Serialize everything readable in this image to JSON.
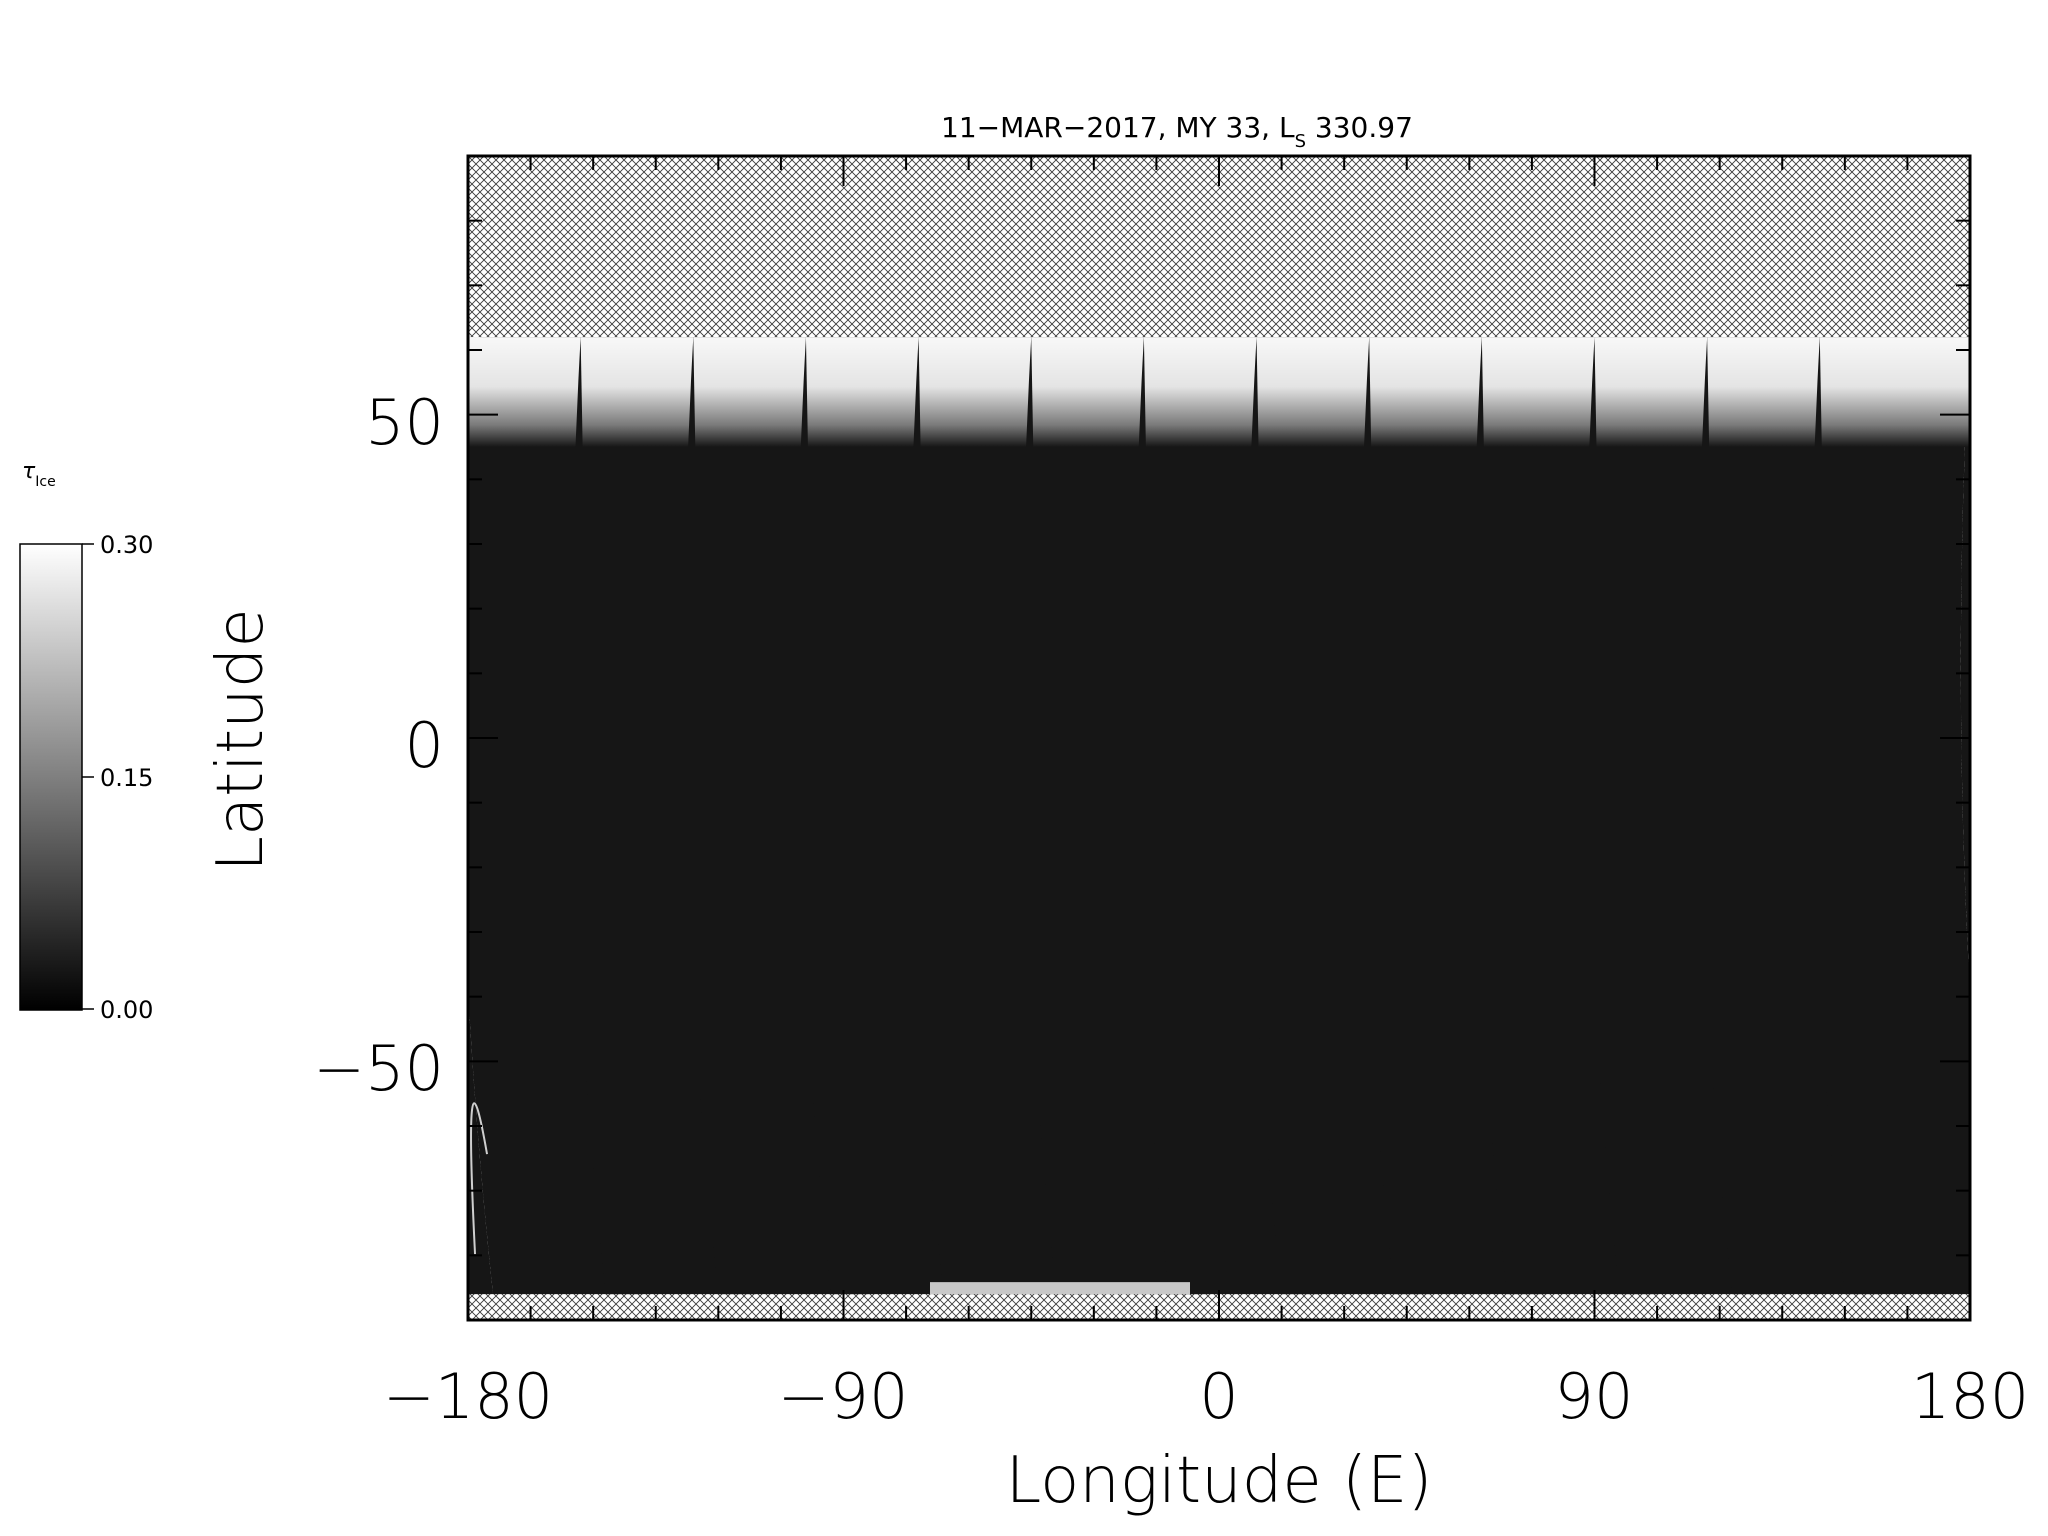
{
  "chart_data": {
    "type": "heatmap",
    "title": "11−MAR−2017, MY 33,  L",
    "title_subscript": "S",
    "title_value": " 330.97",
    "xlabel": "Longitude (E)",
    "ylabel": "Latitude",
    "xlim": [
      -180,
      180
    ],
    "ylim": [
      -90,
      90
    ],
    "x_ticks": [
      -180,
      -90,
      0,
      90,
      180
    ],
    "x_tick_labels": [
      "−180",
      "−90",
      "0",
      "90",
      "180"
    ],
    "y_ticks": [
      50,
      0,
      -50
    ],
    "y_tick_labels": [
      "50",
      "0",
      "−50"
    ],
    "colorbar": {
      "label": "τ",
      "label_subscript": "Ice",
      "min": 0.0,
      "max": 0.3,
      "tick_values": [
        0.3,
        0.15,
        0.0
      ],
      "tick_labels": [
        "0.30",
        "0.15",
        "0.00"
      ],
      "colors": [
        "#000000",
        "#ffffff"
      ]
    },
    "no_data_pattern": "cross-hatch",
    "swaths": {
      "count": 13,
      "lon_at_north_edge": [
        -180,
        -153,
        -126,
        -99,
        -72,
        -45,
        -18,
        9,
        36,
        63,
        90,
        117,
        144
      ],
      "lon_at_south_edge": [
        -174,
        -147,
        -120,
        -93,
        -66,
        -39,
        -12,
        15,
        42,
        69,
        96,
        123,
        150
      ]
    },
    "data_lat_range": [
      -86,
      62
    ],
    "north_cloud_band_lat": [
      45,
      62
    ]
  }
}
